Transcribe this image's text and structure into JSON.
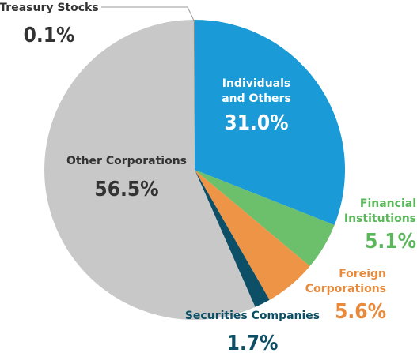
{
  "chart_data": {
    "type": "pie",
    "slices": [
      {
        "label_lines": [
          "Individuals",
          "and Others"
        ],
        "value": 31.0,
        "value_label": "31.0%",
        "color": "#1a9ad6",
        "label_color": "#ffffff",
        "pct_color": "#ffffff"
      },
      {
        "label_lines": [
          "Financial",
          "Institutions"
        ],
        "value": 5.1,
        "value_label": "5.1%",
        "color": "#6cc06c",
        "label_color": "#5bb75b",
        "pct_color": "#5bb75b"
      },
      {
        "label_lines": [
          "Foreign",
          "Corporations"
        ],
        "value": 5.6,
        "value_label": "5.6%",
        "color": "#ee9447",
        "label_color": "#e9893a",
        "pct_color": "#e9893a"
      },
      {
        "label_lines": [
          "Securities Companies"
        ],
        "value": 1.7,
        "value_label": "1.7%",
        "color": "#0d4f66",
        "label_color": "#0d4f66",
        "pct_color": "#0d4f66"
      },
      {
        "label_lines": [
          "Other Corporations"
        ],
        "value": 56.5,
        "value_label": "56.5%",
        "color": "#c8c8c8",
        "label_color": "#333333",
        "pct_color": "#333333"
      },
      {
        "label_lines": [
          "Treasury Stocks"
        ],
        "value": 0.1,
        "value_label": "0.1%",
        "color": "#8a8a8a",
        "label_color": "#333333",
        "pct_color": "#333333"
      }
    ]
  }
}
